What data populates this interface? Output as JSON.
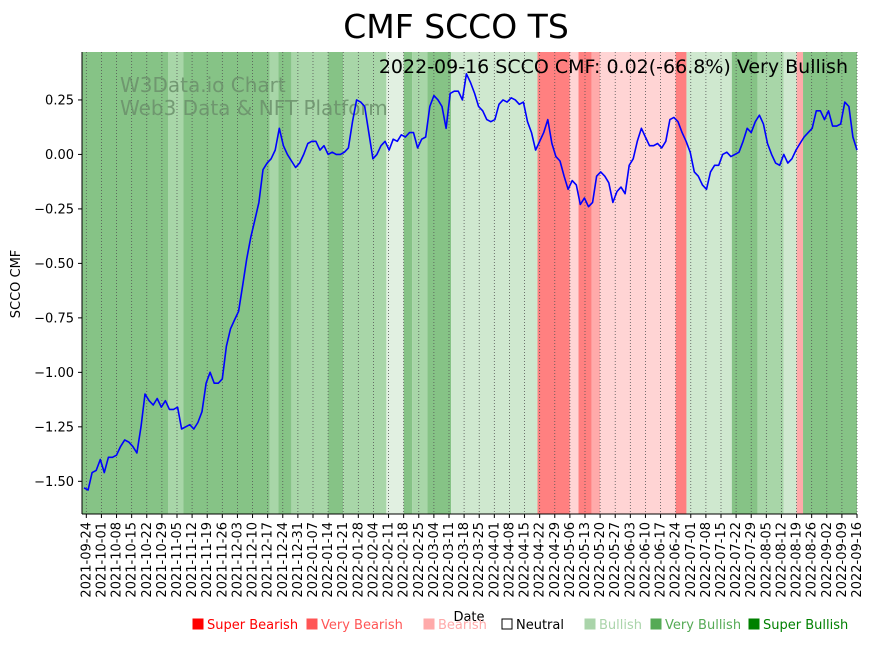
{
  "chart_data": {
    "type": "line",
    "title": "CMF SCCO TS",
    "annotation": "2022-09-16 SCCO CMF: 0.02(-66.8%) Very Bullish",
    "watermark": [
      "W3Data.io Chart",
      "Web3 Data & NFT Platform"
    ],
    "xlabel": "Date",
    "ylabel": "SCCO CMF",
    "ylim": [
      -1.65,
      0.47
    ],
    "yticks": [
      0.25,
      0.0,
      -0.25,
      -0.5,
      -0.75,
      -1.0,
      -1.25,
      -1.5
    ],
    "ytick_labels": [
      "0.25",
      "0.00",
      "−0.25",
      "−0.50",
      "−0.75",
      "−1.00",
      "−1.25",
      "−1.50"
    ],
    "x_start": "2021-09-22",
    "x_end": "2022-09-16",
    "xtick_labels": [
      "2021-09-24",
      "2021-10-01",
      "2021-10-08",
      "2021-10-15",
      "2021-10-22",
      "2021-10-29",
      "2021-11-05",
      "2021-11-12",
      "2021-11-19",
      "2021-11-26",
      "2021-12-03",
      "2021-12-10",
      "2021-12-17",
      "2021-12-24",
      "2021-12-31",
      "2022-01-07",
      "2022-01-14",
      "2022-01-21",
      "2022-01-28",
      "2022-02-04",
      "2022-02-11",
      "2022-02-18",
      "2022-02-25",
      "2022-03-04",
      "2022-03-11",
      "2022-03-18",
      "2022-03-25",
      "2022-04-01",
      "2022-04-08",
      "2022-04-15",
      "2022-04-22",
      "2022-04-29",
      "2022-05-06",
      "2022-05-13",
      "2022-05-20",
      "2022-05-27",
      "2022-06-03",
      "2022-06-10",
      "2022-06-17",
      "2022-06-24",
      "2022-07-01",
      "2022-07-08",
      "2022-07-15",
      "2022-07-22",
      "2022-07-29",
      "2022-08-05",
      "2022-08-12",
      "2022-08-19",
      "2022-08-26",
      "2022-09-02",
      "2022-09-09",
      "2022-09-16"
    ],
    "series": [
      {
        "name": "SCCO CMF",
        "color": "#0000ff",
        "values": [
          -1.53,
          -1.54,
          -1.46,
          -1.45,
          -1.4,
          -1.46,
          -1.39,
          -1.39,
          -1.38,
          -1.34,
          -1.31,
          -1.32,
          -1.34,
          -1.37,
          -1.25,
          -1.1,
          -1.13,
          -1.15,
          -1.12,
          -1.16,
          -1.13,
          -1.17,
          -1.17,
          -1.16,
          -1.26,
          -1.25,
          -1.24,
          -1.26,
          -1.23,
          -1.18,
          -1.05,
          -1.0,
          -1.05,
          -1.05,
          -1.03,
          -0.88,
          -0.8,
          -0.76,
          -0.72,
          -0.6,
          -0.48,
          -0.38,
          -0.3,
          -0.22,
          -0.07,
          -0.04,
          -0.02,
          0.02,
          0.12,
          0.04,
          0.0,
          -0.03,
          -0.06,
          -0.04,
          0.0,
          0.05,
          0.06,
          0.06,
          0.02,
          0.04,
          0.0,
          0.01,
          0.0,
          0.0,
          0.01,
          0.03,
          0.15,
          0.25,
          0.24,
          0.22,
          0.1,
          -0.02,
          0.0,
          0.04,
          0.06,
          0.02,
          0.07,
          0.06,
          0.09,
          0.08,
          0.1,
          0.1,
          0.03,
          0.07,
          0.08,
          0.22,
          0.27,
          0.25,
          0.22,
          0.12,
          0.28,
          0.29,
          0.29,
          0.25,
          0.37,
          0.33,
          0.28,
          0.22,
          0.2,
          0.16,
          0.15,
          0.16,
          0.23,
          0.25,
          0.24,
          0.26,
          0.25,
          0.23,
          0.24,
          0.15,
          0.1,
          0.02,
          0.06,
          0.1,
          0.16,
          0.05,
          -0.01,
          -0.03,
          -0.1,
          -0.16,
          -0.12,
          -0.14,
          -0.23,
          -0.2,
          -0.24,
          -0.22,
          -0.1,
          -0.08,
          -0.1,
          -0.13,
          -0.22,
          -0.17,
          -0.15,
          -0.18,
          -0.05,
          -0.02,
          0.06,
          0.12,
          0.08,
          0.04,
          0.04,
          0.05,
          0.03,
          0.06,
          0.16,
          0.17,
          0.15,
          0.1,
          0.06,
          0.01,
          -0.08,
          -0.1,
          -0.14,
          -0.16,
          -0.08,
          -0.05,
          -0.05,
          0.0,
          0.01,
          -0.01,
          0.0,
          0.01,
          0.06,
          0.12,
          0.1,
          0.15,
          0.18,
          0.14,
          0.05,
          0.0,
          -0.04,
          -0.05,
          0.0,
          -0.04,
          -0.02,
          0.02,
          0.05,
          0.08,
          0.1,
          0.12,
          0.2,
          0.2,
          0.16,
          0.2,
          0.13,
          0.13,
          0.14,
          0.24,
          0.22,
          0.08,
          0.02
        ]
      }
    ],
    "bands": [
      {
        "from": "2021-09-22",
        "to": "2021-11-01",
        "class": "very_bullish"
      },
      {
        "from": "2021-11-01",
        "to": "2021-11-08",
        "class": "bullish"
      },
      {
        "from": "2021-11-08",
        "to": "2021-12-18",
        "class": "very_bullish"
      },
      {
        "from": "2021-12-18",
        "to": "2021-12-22",
        "class": "bullish"
      },
      {
        "from": "2021-12-22",
        "to": "2021-12-28",
        "class": "very_bullish"
      },
      {
        "from": "2021-12-28",
        "to": "2022-01-14",
        "class": "bullish"
      },
      {
        "from": "2022-01-14",
        "to": "2022-01-21",
        "class": "very_bullish"
      },
      {
        "from": "2022-01-21",
        "to": "2022-02-10",
        "class": "bullish"
      },
      {
        "from": "2022-02-10",
        "to": "2022-02-18",
        "class": "neutral_light"
      },
      {
        "from": "2022-02-18",
        "to": "2022-02-22",
        "class": "very_bullish"
      },
      {
        "from": "2022-02-22",
        "to": "2022-03-01",
        "class": "bullish"
      },
      {
        "from": "2022-03-01",
        "to": "2022-03-12",
        "class": "very_bullish"
      },
      {
        "from": "2022-03-12",
        "to": "2022-04-21",
        "class": "bullish_light"
      },
      {
        "from": "2022-04-21",
        "to": "2022-05-06",
        "class": "very_bearish"
      },
      {
        "from": "2022-05-06",
        "to": "2022-05-10",
        "class": "bearish_light"
      },
      {
        "from": "2022-05-10",
        "to": "2022-05-16",
        "class": "very_bearish"
      },
      {
        "from": "2022-05-16",
        "to": "2022-05-20",
        "class": "bearish"
      },
      {
        "from": "2022-05-20",
        "to": "2022-06-24",
        "class": "bearish_light"
      },
      {
        "from": "2022-06-24",
        "to": "2022-06-29",
        "class": "very_bearish"
      },
      {
        "from": "2022-06-29",
        "to": "2022-07-20",
        "class": "bullish_light"
      },
      {
        "from": "2022-07-20",
        "to": "2022-08-01",
        "class": "very_bullish"
      },
      {
        "from": "2022-08-01",
        "to": "2022-08-13",
        "class": "bullish"
      },
      {
        "from": "2022-08-13",
        "to": "2022-08-19",
        "class": "bullish_light"
      },
      {
        "from": "2022-08-19",
        "to": "2022-08-22",
        "class": "bearish"
      },
      {
        "from": "2022-08-22",
        "to": "2022-09-16",
        "class": "very_bullish"
      }
    ],
    "band_colors": {
      "very_bullish": "#86c386",
      "bullish": "#a8d6a8",
      "bullish_light": "#cfe8cf",
      "neutral_light": "#e1f0e1",
      "very_bearish": "#ff8080",
      "bearish": "#ffaaaa",
      "bearish_light": "#ffd4d4"
    },
    "legend": [
      {
        "label": "Super Bearish",
        "color": "#ff0000",
        "text_color": "#ff0000",
        "filled": true
      },
      {
        "label": "Very Bearish",
        "color": "#ff5555",
        "text_color": "#ff5555",
        "filled": true
      },
      {
        "label": "Bearish",
        "color": "#ffaaaa",
        "text_color": "#ffaaaa",
        "filled": true
      },
      {
        "label": "Neutral",
        "color": "#000000",
        "text_color": "#000000",
        "filled": false
      },
      {
        "label": "Bullish",
        "color": "#aad4aa",
        "text_color": "#aad4aa",
        "filled": true
      },
      {
        "label": "Very Bullish",
        "color": "#55aa55",
        "text_color": "#55aa55",
        "filled": true
      },
      {
        "label": "Super Bullish",
        "color": "#008000",
        "text_color": "#008000",
        "filled": true
      }
    ],
    "legend_placement": "bottom-right"
  }
}
